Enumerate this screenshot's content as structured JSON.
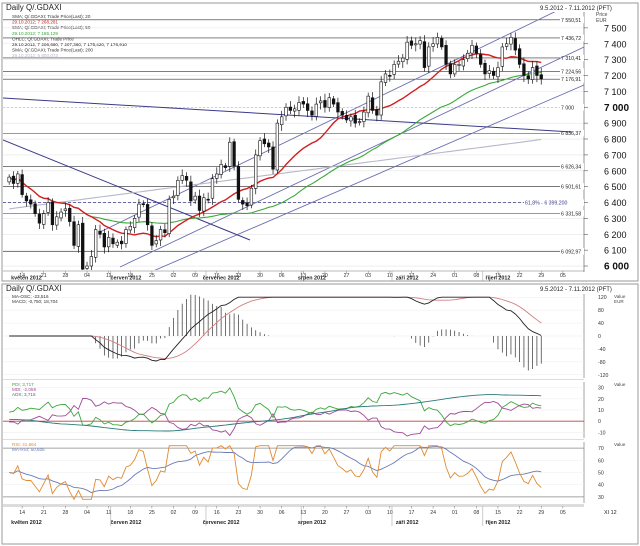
{
  "colors": {
    "candle_up": "#ffffff",
    "candle_down": "#111111",
    "ma20": "#d02020",
    "ma50": "#3aa83a",
    "ma200": "#b8b8c8",
    "channel": "#6b6fb0",
    "trend": "#3a3a8a",
    "hline": "#333333",
    "fib": "#3a3a8a",
    "macd": "#222222",
    "macd_signal": "#d08080",
    "dmi_plus": "#3aa83a",
    "dmi_minus": "#a04a9a",
    "adx": "#2a7a7a",
    "rsi": "#e08a30",
    "rsi_ma": "#6a7ab8"
  },
  "main": {
    "title": "Daily Q/.GDAXI",
    "date_range": "9.5.2012 - 7.11.2012 (PFT)",
    "price_header": "Price",
    "currency": "EUR",
    "legend": [
      "SMA; Q/.GDAXI; Trade Price(Last); 20",
      "29.10.2012; 7 268,281",
      "SMA; Q/.GDAXI; Trade Price(Last); 50",
      "29.10.2012; 7 186,129",
      "OHLC; Q/.GDAXI; Trade Price",
      "29.10.2012; 7 206,660; 7 207,360; 7 175,420; 7 176,910",
      "SMA; Q/.GDAXI; Trade Price(Last); 200",
      "29.10.2012; 6 800,073"
    ],
    "y_ticks": [
      "7 500",
      "7 400",
      "7 300",
      "7 200",
      "7 100",
      "7 000",
      "6 900",
      "6 800",
      "6 700",
      "6 600",
      "6 500",
      "6 400",
      "6 300",
      "6 200",
      "6 100",
      "6 000"
    ],
    "bold_ticks": [
      "7 000",
      "6 000"
    ],
    "level_labels": [
      "7 550,51",
      "7 436,72",
      "7 310,41",
      "7 224,56",
      "7 176,91",
      "7 000",
      "6 836,37",
      "6 626,34",
      "6 501,61",
      "6 331,58",
      "6 092,97"
    ],
    "fib_label": "61,8% - 6 399,200"
  },
  "macd": {
    "title": "Daily Q/.GDAXI",
    "date_range": "9.5.2012 - 7.11.2012 (PFT)",
    "legend": [
      "MA-OSC; -23,516",
      "MACD; -0,750; 18,704"
    ],
    "header": "Value",
    "currency": "EUR",
    "y_ticks": [
      "120",
      "80",
      "40",
      "0",
      "-40",
      "-80",
      "-120"
    ]
  },
  "dmi": {
    "legend": [
      "PDI; 3,717",
      "MDI; -2,059",
      "ADX; 3,715"
    ],
    "header": "Value",
    "y_ticks": [
      "30",
      "20",
      "10",
      "0",
      "-10"
    ]
  },
  "rsi": {
    "legend": [
      "RSI; 41,664",
      "MA-RSI; 50,606"
    ],
    "header": "Value",
    "y_ticks": [
      "70",
      "60",
      "50",
      "40",
      "30"
    ]
  },
  "x_axis": {
    "days": [
      "14",
      "21",
      "28",
      "04",
      "11",
      "18",
      "25",
      "02",
      "09",
      "16",
      "23",
      "30",
      "06",
      "13",
      "20",
      "27",
      "03",
      "10",
      "17",
      "24",
      "01",
      "08",
      "15",
      "22",
      "29",
      "05"
    ],
    "months": [
      "květen 2012",
      "červen 2012",
      "červenec 2012",
      "srpen 2012",
      "září 2012",
      "říjen 2012"
    ],
    "end_label": "XI 12"
  },
  "chart_data": [
    {
      "type": "candlestick",
      "title": "Daily Q/.GDAXI",
      "ylabel": "Price EUR",
      "ylim": [
        5975,
        7600
      ],
      "x": [
        "2012-05-09",
        "2012-05-10",
        "2012-05-11",
        "2012-05-14",
        "2012-05-15",
        "2012-05-16",
        "2012-05-17",
        "2012-05-18",
        "2012-05-21",
        "2012-05-22",
        "2012-05-23",
        "2012-05-24",
        "2012-05-25",
        "2012-05-28",
        "2012-05-29",
        "2012-05-30",
        "2012-05-31",
        "2012-06-01",
        "2012-06-04",
        "2012-06-05",
        "2012-06-06",
        "2012-06-07",
        "2012-06-08",
        "2012-06-11",
        "2012-06-12",
        "2012-06-13",
        "2012-06-14",
        "2012-06-15",
        "2012-06-18",
        "2012-06-19",
        "2012-06-20",
        "2012-06-21",
        "2012-06-22",
        "2012-06-25",
        "2012-06-26",
        "2012-06-27",
        "2012-06-28",
        "2012-06-29",
        "2012-07-02",
        "2012-07-03",
        "2012-07-04",
        "2012-07-05",
        "2012-07-06",
        "2012-07-09",
        "2012-07-10",
        "2012-07-11",
        "2012-07-12",
        "2012-07-13",
        "2012-07-16",
        "2012-07-17",
        "2012-07-18",
        "2012-07-19",
        "2012-07-20",
        "2012-07-23",
        "2012-07-24",
        "2012-07-25",
        "2012-07-26",
        "2012-07-27",
        "2012-07-30",
        "2012-07-31",
        "2012-08-01",
        "2012-08-02",
        "2012-08-03",
        "2012-08-06",
        "2012-08-07",
        "2012-08-08",
        "2012-08-09",
        "2012-08-10",
        "2012-08-13",
        "2012-08-14",
        "2012-08-15",
        "2012-08-16",
        "2012-08-17",
        "2012-08-20",
        "2012-08-21",
        "2012-08-22",
        "2012-08-23",
        "2012-08-24",
        "2012-08-27",
        "2012-08-28",
        "2012-08-29",
        "2012-08-30",
        "2012-08-31",
        "2012-09-03",
        "2012-09-04",
        "2012-09-05",
        "2012-09-06",
        "2012-09-07",
        "2012-09-10",
        "2012-09-11",
        "2012-09-12",
        "2012-09-13",
        "2012-09-14",
        "2012-09-17",
        "2012-09-18",
        "2012-09-19",
        "2012-09-20",
        "2012-09-21",
        "2012-09-24",
        "2012-09-25",
        "2012-09-26",
        "2012-09-27",
        "2012-09-28",
        "2012-10-01",
        "2012-10-02",
        "2012-10-03",
        "2012-10-04",
        "2012-10-05",
        "2012-10-08",
        "2012-10-09",
        "2012-10-10",
        "2012-10-11",
        "2012-10-12",
        "2012-10-15",
        "2012-10-16",
        "2012-10-17",
        "2012-10-18",
        "2012-10-19",
        "2012-10-22",
        "2012-10-23",
        "2012-10-24",
        "2012-10-25",
        "2012-10-26",
        "2012-10-29"
      ],
      "close": [
        6560,
        6520,
        6580,
        6450,
        6410,
        6390,
        6330,
        6270,
        6330,
        6400,
        6260,
        6310,
        6340,
        6360,
        6280,
        6130,
        6260,
        5980,
        6000,
        6060,
        6230,
        6200,
        6120,
        6180,
        6140,
        6150,
        6140,
        6230,
        6250,
        6300,
        6390,
        6390,
        6260,
        6130,
        6160,
        6230,
        6210,
        6420,
        6440,
        6540,
        6570,
        6540,
        6410,
        6440,
        6350,
        6430,
        6420,
        6550,
        6580,
        6640,
        6620,
        6780,
        6630,
        6420,
        6390,
        6380,
        6490,
        6700,
        6790,
        6770,
        6750,
        6610,
        6900,
        6940,
        7000,
        6980,
        6990,
        7030,
        7020,
        6980,
        6950,
        7020,
        7040,
        7000,
        7060,
        7020,
        6970,
        6950,
        6920,
        6940,
        6900,
        6910,
        6970,
        7070,
        6980,
        6950,
        7160,
        7210,
        7200,
        7270,
        7290,
        7310,
        7410,
        7390,
        7400,
        7420,
        7250,
        7380,
        7400,
        7440,
        7380,
        7270,
        7210,
        7270,
        7270,
        7300,
        7340,
        7390,
        7340,
        7270,
        7210,
        7230,
        7200,
        7250,
        7380,
        7400,
        7440,
        7360,
        7270,
        7200,
        7180,
        7250,
        7200,
        7176.91
      ],
      "series": [
        {
          "name": "SMA 20",
          "last": "7 268,281"
        },
        {
          "name": "SMA 50",
          "last": "7 186,129"
        },
        {
          "name": "SMA 200",
          "last": "6 800,073"
        }
      ],
      "levels": [
        7550.51,
        7436.72,
        7310.41,
        7224.56,
        7176.91,
        7000,
        6836.37,
        6626.34,
        6501.61,
        6331.58,
        6092.97
      ],
      "fibonacci": {
        "label": "61,8%",
        "value": 6399.2
      }
    },
    {
      "type": "line",
      "title": "MA-OSC / MACD",
      "ylim": [
        -130,
        130
      ],
      "series": [
        {
          "name": "MA-OSC",
          "last": -23.516
        },
        {
          "name": "MACD",
          "last": -0.75,
          "signal": 18.704
        }
      ]
    },
    {
      "type": "line",
      "title": "PDI / MDI / ADX",
      "ylim": [
        -15,
        35
      ],
      "series": [
        {
          "name": "PDI",
          "last": 3.717
        },
        {
          "name": "MDI",
          "last": -2.059
        },
        {
          "name": "ADX",
          "last": 3.715
        }
      ]
    },
    {
      "type": "line",
      "title": "RSI",
      "ylim": [
        25,
        75
      ],
      "series": [
        {
          "name": "RSI",
          "last": 41.664
        },
        {
          "name": "MA-RSI",
          "last": 50.606
        }
      ]
    }
  ]
}
